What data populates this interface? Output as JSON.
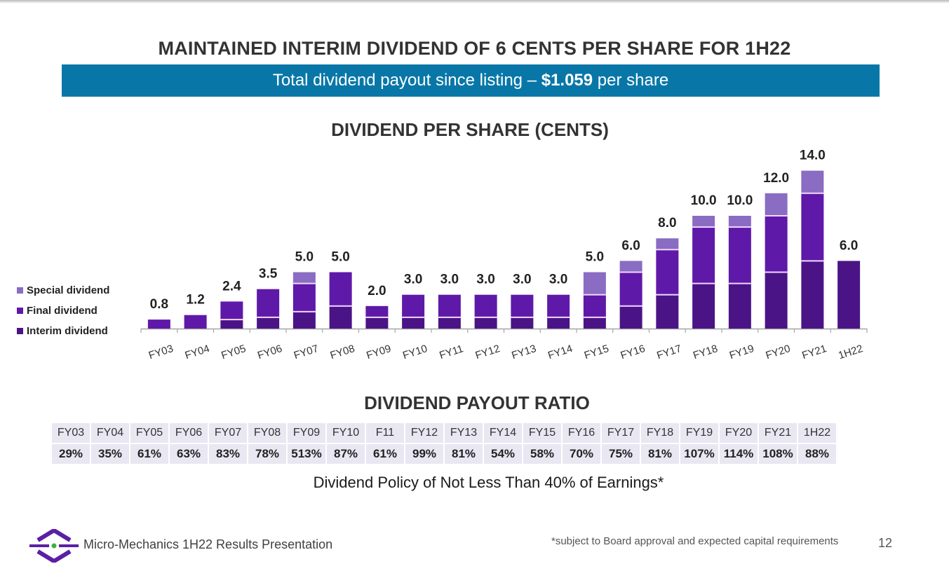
{
  "header": {
    "title": "MAINTAINED INTERIM DIVIDEND OF 6 CENTS PER SHARE FOR 1H22",
    "banner_prefix": "Total dividend payout since listing – ",
    "banner_amount": "$1.059",
    "banner_suffix": " per share"
  },
  "colors": {
    "banner": "#0877a8",
    "interim": "#4a1486",
    "final": "#5f19a8",
    "special": "#8a6cc2",
    "segment_divider": "#f1d8ff",
    "table_cell": "#e9e7f1"
  },
  "chart_data": {
    "type": "bar",
    "stacked": true,
    "title": "DIVIDEND PER SHARE (CENTS)",
    "xlabel": "",
    "ylabel": "",
    "ylim": [
      0,
      14
    ],
    "grid": false,
    "legend_position": "left",
    "categories": [
      "FY03",
      "FY04",
      "FY05",
      "FY06",
      "FY07",
      "FY08",
      "FY09",
      "FY10",
      "FY11",
      "FY12",
      "FY13",
      "FY14",
      "FY15",
      "FY16",
      "FY17",
      "FY18",
      "FY19",
      "FY20",
      "FY21",
      "1H22"
    ],
    "series": [
      {
        "name": "Interim dividend",
        "values": [
          0,
          0,
          0.8,
          1.0,
          1.5,
          2.0,
          1.0,
          1.0,
          1.0,
          1.0,
          1.0,
          1.0,
          1.0,
          2.0,
          3.0,
          4.0,
          4.0,
          5.0,
          6.0,
          6.0
        ]
      },
      {
        "name": "Final dividend",
        "values": [
          0.8,
          1.2,
          1.6,
          2.5,
          2.5,
          3.0,
          1.0,
          2.0,
          2.0,
          2.0,
          2.0,
          2.0,
          2.0,
          3.0,
          4.0,
          5.0,
          5.0,
          5.0,
          6.0,
          0
        ]
      },
      {
        "name": "Special dividend",
        "values": [
          0,
          0,
          0,
          0,
          1.0,
          0,
          0,
          0,
          0,
          0,
          0,
          0,
          2.0,
          1.0,
          1.0,
          1.0,
          1.0,
          2.0,
          2.0,
          0
        ]
      }
    ],
    "totals": [
      "0.8",
      "1.2",
      "2.4",
      "3.5",
      "5.0",
      "5.0",
      "2.0",
      "3.0",
      "3.0",
      "3.0",
      "3.0",
      "3.0",
      "5.0",
      "6.0",
      "8.0",
      "10.0",
      "10.0",
      "12.0",
      "14.0",
      "6.0"
    ],
    "legend": [
      "Special dividend",
      "Final dividend",
      "Interim dividend"
    ]
  },
  "payout_table": {
    "title": "DIVIDEND PAYOUT RATIO",
    "periods": [
      "FY03",
      "FY04",
      "FY05",
      "FY06",
      "FY07",
      "FY08",
      "FY09",
      "FY10",
      "F11",
      "FY12",
      "FY13",
      "FY14",
      "FY15",
      "FY16",
      "FY17",
      "FY18",
      "FY19",
      "FY20",
      "FY21",
      "1H22"
    ],
    "ratios": [
      "29%",
      "35%",
      "61%",
      "63%",
      "83%",
      "78%",
      "513%",
      "87%",
      "61%",
      "99%",
      "81%",
      "54%",
      "58%",
      "70%",
      "75%",
      "81%",
      "107%",
      "114%",
      "108%",
      "88%"
    ]
  },
  "policy_text": "Dividend Policy of Not Less Than 40% of Earnings*",
  "footer": {
    "logo_icon": "micro-mechanics-logo",
    "company_text": "Micro-Mechanics 1H22 Results Presentation",
    "footnote": "*subject to Board approval and expected capital requirements",
    "page_number": "12"
  }
}
